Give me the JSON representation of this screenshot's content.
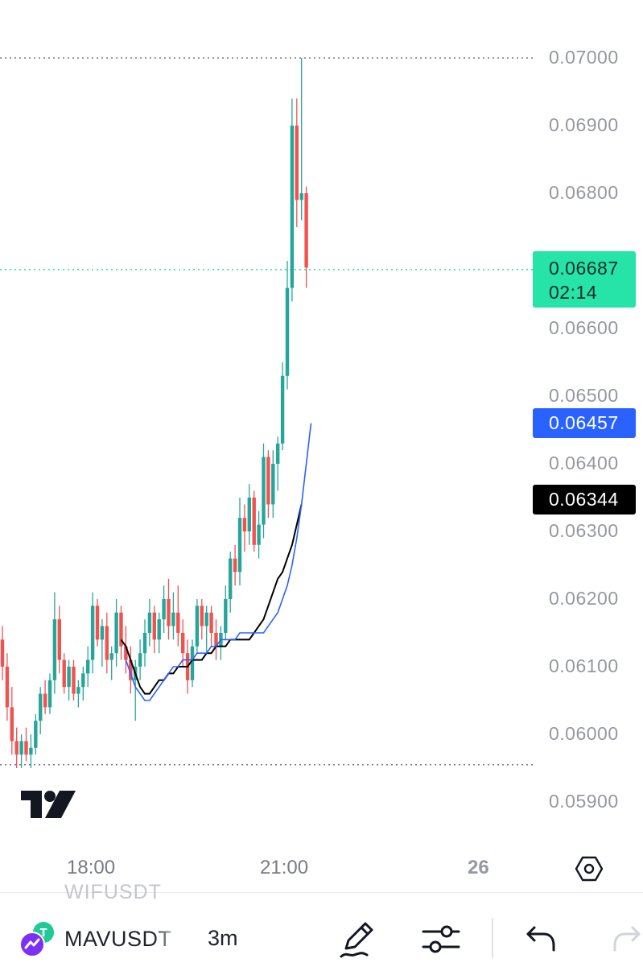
{
  "chart": {
    "price_axis_ticks": [
      "0.07000",
      "0.06900",
      "0.06800",
      "0.06600",
      "0.06500",
      "0.06400",
      "0.06300",
      "0.06200",
      "0.06100",
      "0.06000",
      "0.05900"
    ],
    "last_price": "0.06687",
    "countdown": "02:14",
    "ma_fast_value": "0.06457",
    "ma_slow_value": "0.06344",
    "time_axis": {
      "t1": "18:00",
      "t2": "21:00",
      "day": "26"
    },
    "colors": {
      "up": "#26a69a",
      "down": "#ef5350",
      "ma_fast": "#2962ff",
      "ma_slow": "#000000",
      "last_price": "#26e3a8"
    },
    "icons": [
      "settings-hexagon-icon",
      "tradingview-logo"
    ]
  },
  "chart_data": {
    "type": "candlestick",
    "symbol": "MAVUSDT",
    "interval": "3m",
    "ylim": [
      0.0585,
      0.0701
    ],
    "high_line": 0.07,
    "low_line": 0.05955,
    "candles": [
      [
        0.0614,
        0.0616,
        0.0608,
        0.061
      ],
      [
        0.061,
        0.0612,
        0.0602,
        0.0604
      ],
      [
        0.0604,
        0.0607,
        0.0597,
        0.0599
      ],
      [
        0.0599,
        0.0601,
        0.0595,
        0.0597
      ],
      [
        0.0597,
        0.06,
        0.0595,
        0.0599
      ],
      [
        0.0599,
        0.0601,
        0.0596,
        0.0597
      ],
      [
        0.0597,
        0.06,
        0.0595,
        0.0598
      ],
      [
        0.0598,
        0.0603,
        0.0597,
        0.0602
      ],
      [
        0.0602,
        0.0607,
        0.06,
        0.0606
      ],
      [
        0.0606,
        0.0608,
        0.0603,
        0.0604
      ],
      [
        0.0604,
        0.0609,
        0.0603,
        0.0608
      ],
      [
        0.0608,
        0.0621,
        0.0606,
        0.0617
      ],
      [
        0.0617,
        0.0619,
        0.0609,
        0.0611
      ],
      [
        0.0611,
        0.0612,
        0.0606,
        0.0607
      ],
      [
        0.0607,
        0.0611,
        0.0605,
        0.061
      ],
      [
        0.061,
        0.0611,
        0.0605,
        0.0606
      ],
      [
        0.0606,
        0.0608,
        0.0604,
        0.0607
      ],
      [
        0.0607,
        0.061,
        0.0605,
        0.0609
      ],
      [
        0.0609,
        0.0613,
        0.0607,
        0.0611
      ],
      [
        0.0611,
        0.0621,
        0.0609,
        0.0619
      ],
      [
        0.0619,
        0.062,
        0.0613,
        0.0614
      ],
      [
        0.0614,
        0.0617,
        0.061,
        0.0616
      ],
      [
        0.0616,
        0.0618,
        0.0609,
        0.0611
      ],
      [
        0.0611,
        0.0613,
        0.0608,
        0.0612
      ],
      [
        0.0612,
        0.062,
        0.061,
        0.0618
      ],
      [
        0.0618,
        0.0619,
        0.0611,
        0.0613
      ],
      [
        0.0613,
        0.0616,
        0.0609,
        0.0611
      ],
      [
        0.0611,
        0.0613,
        0.0606,
        0.0608
      ],
      [
        0.0608,
        0.0611,
        0.0602,
        0.061
      ],
      [
        0.061,
        0.0614,
        0.0608,
        0.0612
      ],
      [
        0.0612,
        0.0617,
        0.061,
        0.0615
      ],
      [
        0.0615,
        0.062,
        0.0613,
        0.0618
      ],
      [
        0.0618,
        0.0619,
        0.0612,
        0.0614
      ],
      [
        0.0614,
        0.0618,
        0.0612,
        0.0617
      ],
      [
        0.0617,
        0.0622,
        0.0615,
        0.062
      ],
      [
        0.062,
        0.0623,
        0.0614,
        0.0616
      ],
      [
        0.0616,
        0.0621,
        0.0614,
        0.0618
      ],
      [
        0.0618,
        0.0622,
        0.0613,
        0.0615
      ],
      [
        0.0615,
        0.0617,
        0.061,
        0.0612
      ],
      [
        0.0612,
        0.0614,
        0.0606,
        0.0608
      ],
      [
        0.0608,
        0.0614,
        0.0607,
        0.0613
      ],
      [
        0.0613,
        0.062,
        0.0612,
        0.0619
      ],
      [
        0.0619,
        0.062,
        0.0614,
        0.0616
      ],
      [
        0.0616,
        0.0619,
        0.0612,
        0.0618
      ],
      [
        0.0618,
        0.0619,
        0.0613,
        0.0615
      ],
      [
        0.0615,
        0.0617,
        0.0611,
        0.0613
      ],
      [
        0.0613,
        0.0616,
        0.0611,
        0.0615
      ],
      [
        0.0615,
        0.0622,
        0.0614,
        0.062
      ],
      [
        0.062,
        0.0627,
        0.0618,
        0.0626
      ],
      [
        0.0626,
        0.0628,
        0.0622,
        0.0624
      ],
      [
        0.0624,
        0.0635,
        0.0622,
        0.0632
      ],
      [
        0.0632,
        0.0634,
        0.0627,
        0.063
      ],
      [
        0.063,
        0.0637,
        0.0628,
        0.0635
      ],
      [
        0.0635,
        0.0636,
        0.0627,
        0.0628
      ],
      [
        0.0628,
        0.0633,
        0.0626,
        0.0631
      ],
      [
        0.0631,
        0.0643,
        0.0629,
        0.0641
      ],
      [
        0.0641,
        0.0642,
        0.0632,
        0.0634
      ],
      [
        0.0634,
        0.0642,
        0.0632,
        0.064
      ],
      [
        0.064,
        0.0644,
        0.0636,
        0.0643
      ],
      [
        0.0643,
        0.0655,
        0.0642,
        0.0653
      ],
      [
        0.0653,
        0.067,
        0.0651,
        0.0666
      ],
      [
        0.0666,
        0.0694,
        0.0664,
        0.069
      ],
      [
        0.069,
        0.0694,
        0.0675,
        0.0679
      ],
      [
        0.0679,
        0.07,
        0.0676,
        0.068
      ],
      [
        0.068,
        0.0681,
        0.0666,
        0.0669
      ]
    ],
    "ma_fast": [
      0.0611,
      0.0609,
      0.0607,
      0.0606,
      0.0605,
      0.0605,
      0.0606,
      0.0607,
      0.0608,
      0.0609,
      0.061,
      0.061,
      0.0611,
      0.0611,
      0.0611,
      0.0612,
      0.0612,
      0.0612,
      0.0613,
      0.0613,
      0.0614,
      0.0614,
      0.0614,
      0.0614,
      0.0615,
      0.0615,
      0.0615,
      0.0615,
      0.0615,
      0.0615,
      0.0616,
      0.0617,
      0.0618,
      0.062,
      0.0622,
      0.0625,
      0.0629,
      0.0634,
      0.064,
      0.0646
    ],
    "ma_slow": [
      0.0614,
      0.0613,
      0.0611,
      0.0609,
      0.0607,
      0.0606,
      0.0606,
      0.0607,
      0.0608,
      0.0608,
      0.0609,
      0.0609,
      0.061,
      0.061,
      0.061,
      0.0611,
      0.0611,
      0.0611,
      0.0612,
      0.0612,
      0.0613,
      0.0613,
      0.0613,
      0.0614,
      0.0614,
      0.0614,
      0.0614,
      0.0614,
      0.0615,
      0.0616,
      0.0617,
      0.0619,
      0.0621,
      0.0623,
      0.0624,
      0.0626,
      0.0628,
      0.0631,
      0.0634
    ],
    "grid": false,
    "legend": "none"
  },
  "bottom_bar": {
    "ghost_symbol": "WIFUSDT",
    "symbol": "MAVUSDT",
    "interval": "3m",
    "icons": [
      "symbol-exchange-icon",
      "draw-pencil-icon",
      "indicator-settings-icon",
      "undo-icon",
      "redo-icon"
    ]
  }
}
